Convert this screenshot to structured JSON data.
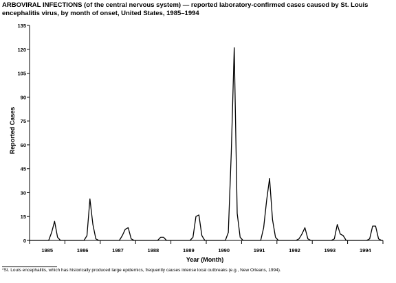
{
  "title": {
    "prefix": "ARBOVIRAL INFECTIONS (of the central nervous system)",
    "suffix": " — reported laboratory-confirmed cases caused by St. Louis encephalitis virus, by month of onset, United States, 1985–1994"
  },
  "footnote": "*St. Louis encephalitis, which has historically produced large epidemics, frequently causes intense local outbreaks (e.g., New Orleans, 1994).",
  "chart_data": {
    "type": "line",
    "ylabel": "Reported Cases",
    "xlabel": "Year (Month)",
    "ylim": [
      0,
      135
    ],
    "yticks": [
      0,
      15,
      30,
      45,
      60,
      75,
      90,
      105,
      120,
      135
    ],
    "xlim": [
      0,
      120
    ],
    "year_labels": [
      "1985",
      "1986",
      "1987",
      "1988",
      "1989",
      "1990",
      "1991",
      "1992",
      "1993",
      "1994"
    ],
    "grid": false,
    "series": [
      {
        "values": [
          0,
          0,
          0,
          0,
          0,
          0,
          0,
          5,
          12,
          2,
          0,
          0,
          0,
          0,
          0,
          0,
          0,
          0,
          0,
          3,
          26,
          10,
          1,
          0,
          0,
          0,
          0,
          0,
          0,
          0,
          0,
          3,
          7,
          8,
          1,
          0,
          0,
          0,
          0,
          0,
          0,
          0,
          0,
          0,
          2,
          2,
          0,
          0,
          0,
          0,
          0,
          0,
          0,
          0,
          0,
          2,
          15,
          16,
          3,
          0,
          0,
          0,
          0,
          0,
          0,
          0,
          0,
          5,
          55,
          121,
          17,
          2,
          0,
          0,
          0,
          0,
          0,
          0,
          0,
          8,
          25,
          39,
          13,
          2,
          0,
          0,
          0,
          0,
          0,
          0,
          0,
          1,
          4,
          8,
          1,
          0,
          0,
          0,
          0,
          0,
          0,
          0,
          0,
          1,
          10,
          4,
          3,
          0,
          0,
          0,
          0,
          0,
          0,
          0,
          0,
          1,
          9,
          9,
          1,
          0
        ]
      }
    ]
  }
}
